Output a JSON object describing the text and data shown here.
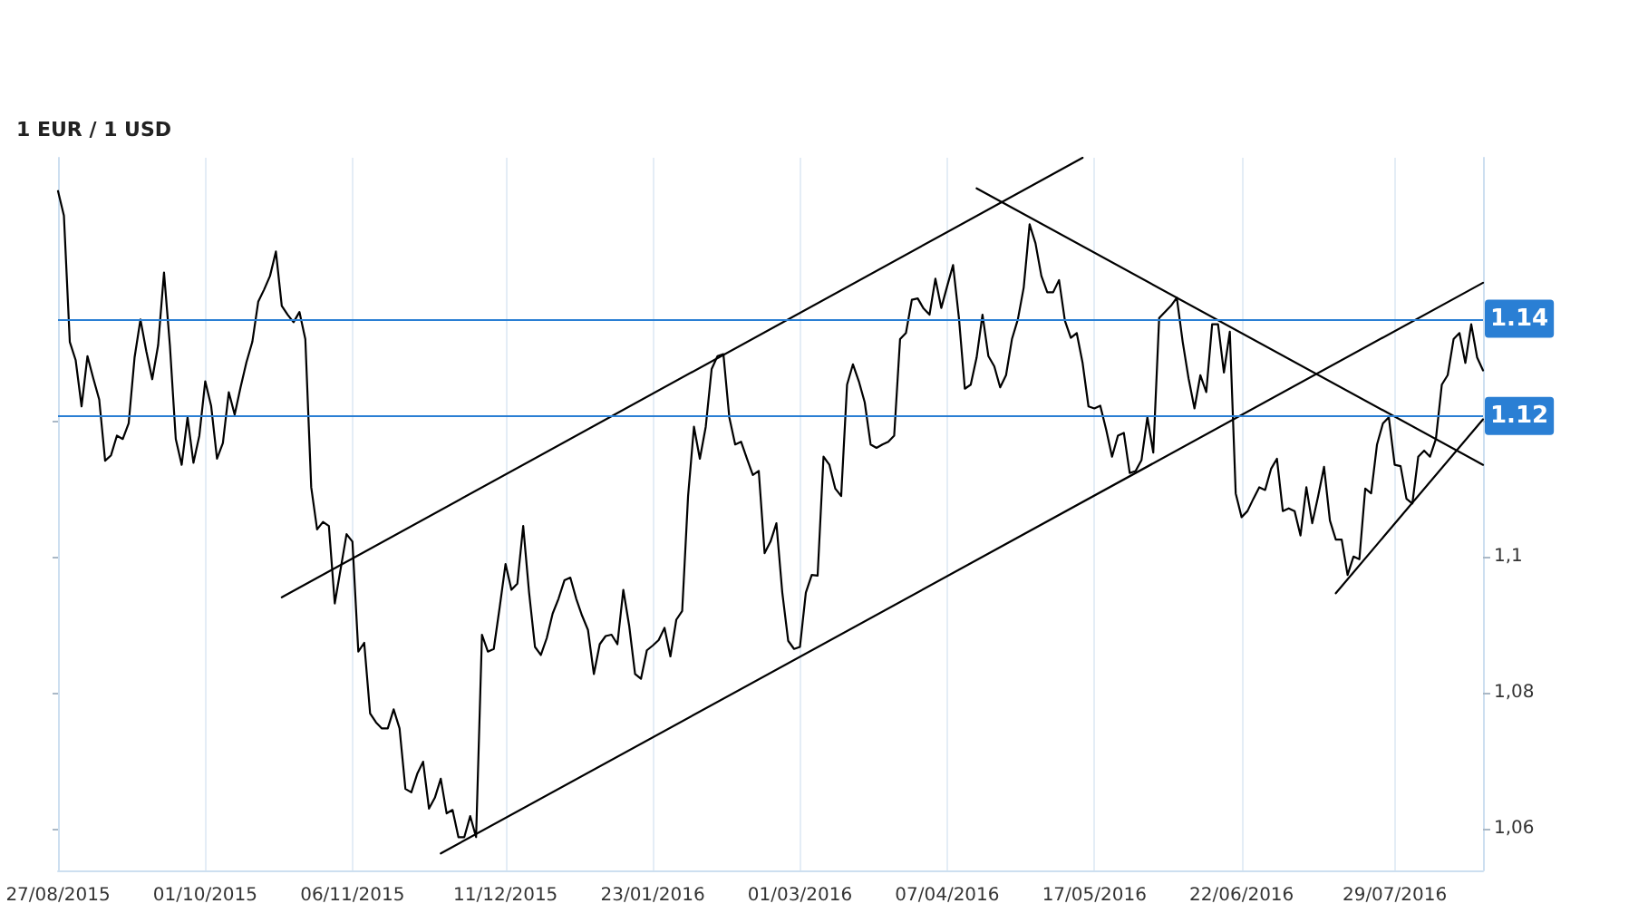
{
  "chart_data": {
    "type": "line",
    "title": "1 EUR / 1 USD",
    "marker": "none",
    "grid": "x",
    "categories": [
      "27/08/2015",
      null,
      null,
      null,
      null,
      null,
      null,
      null,
      null,
      null,
      null,
      null,
      null,
      null,
      null,
      null,
      null,
      null,
      null,
      null,
      null,
      null,
      null,
      null,
      null,
      "01/10/2015",
      null,
      null,
      null,
      null,
      null,
      null,
      null,
      null,
      null,
      null,
      null,
      null,
      null,
      null,
      null,
      null,
      null,
      null,
      null,
      null,
      null,
      null,
      null,
      null,
      "06/11/2015",
      null,
      null,
      null,
      null,
      null,
      null,
      null,
      null,
      null,
      null,
      null,
      null,
      null,
      null,
      null,
      null,
      null,
      null,
      null,
      null,
      null,
      null,
      null,
      null,
      null,
      "11/12/2015",
      null,
      null,
      null,
      null,
      null,
      null,
      null,
      null,
      null,
      null,
      null,
      null,
      null,
      null,
      null,
      null,
      null,
      null,
      null,
      null,
      null,
      null,
      null,
      null,
      "23/01/2016",
      null,
      null,
      null,
      null,
      null,
      null,
      null,
      null,
      null,
      null,
      null,
      null,
      null,
      null,
      null,
      null,
      null,
      null,
      null,
      null,
      null,
      null,
      null,
      null,
      "01/03/2016",
      null,
      null,
      null,
      null,
      null,
      null,
      null,
      null,
      null,
      null,
      null,
      null,
      null,
      null,
      null,
      null,
      null,
      null,
      null,
      null,
      null,
      null,
      null,
      null,
      "07/04/2016",
      null,
      null,
      null,
      null,
      null,
      null,
      null,
      null,
      null,
      null,
      null,
      null,
      null,
      null,
      null,
      null,
      null,
      null,
      null,
      null,
      null,
      null,
      null,
      null,
      "17/05/2016",
      null,
      null,
      null,
      null,
      null,
      null,
      null,
      null,
      null,
      null,
      null,
      null,
      null,
      null,
      null,
      null,
      null,
      null,
      null,
      null,
      null,
      null,
      null,
      null,
      "22/06/2016",
      null,
      null,
      null,
      null,
      null,
      null,
      null,
      null,
      null,
      null,
      null,
      null,
      null,
      null,
      null,
      null,
      null,
      null,
      null,
      null,
      null,
      null,
      null,
      null,
      null,
      "29/07/2016",
      null,
      null,
      null,
      null,
      null,
      null,
      null,
      null,
      null,
      null,
      null,
      null,
      null,
      null,
      null
    ],
    "ylim": [
      1.0538,
      1.1587
    ],
    "yticks": [
      {
        "value": 1.06,
        "label": "1,06"
      },
      {
        "value": 1.08,
        "label": "1,08"
      },
      {
        "value": 1.1,
        "label": "1,1"
      },
      {
        "value": 1.12,
        "label": null
      }
    ],
    "ref_lines": [
      {
        "axis": "y",
        "value": 1.135,
        "label": "1.14",
        "color": "#2a7fd4"
      },
      {
        "axis": "y",
        "value": 1.1207,
        "label": "1.12",
        "color": "#2a7fd4"
      }
    ],
    "series": [
      {
        "color": "#000000",
        "values": [
          1.1538,
          1.1502,
          1.1316,
          1.1289,
          1.1221,
          1.1295,
          1.1262,
          1.1231,
          1.1141,
          1.1149,
          1.1178,
          1.1173,
          1.1196,
          1.1293,
          1.1349,
          1.1302,
          1.1261,
          1.1311,
          1.1418,
          1.1311,
          1.1173,
          1.1135,
          1.1205,
          1.1138,
          1.1178,
          1.1258,
          1.1222,
          1.1144,
          1.1167,
          1.1242,
          1.1209,
          1.1249,
          1.1286,
          1.1316,
          1.1375,
          1.1393,
          1.1413,
          1.1449,
          1.1369,
          1.1356,
          1.1345,
          1.136,
          1.132,
          1.1102,
          1.104,
          1.1051,
          1.1045,
          1.0931,
          1.0982,
          1.1033,
          1.1022,
          1.086,
          1.0873,
          1.0769,
          1.0756,
          1.0747,
          1.0747,
          1.0775,
          1.0747,
          1.0658,
          1.0653,
          1.068,
          1.0698,
          1.0629,
          1.0645,
          1.0673,
          1.0622,
          1.0627,
          1.0587,
          1.0587,
          1.0618,
          1.0587,
          1.0885,
          1.086,
          1.0864,
          1.0925,
          1.0989,
          1.0951,
          1.096,
          1.1045,
          1.0947,
          1.0867,
          1.0855,
          1.088,
          1.0916,
          1.0938,
          1.0965,
          1.0969,
          1.0938,
          1.0913,
          1.0892,
          1.0827,
          1.0871,
          1.0883,
          1.0885,
          1.0871,
          1.0951,
          1.0898,
          1.0827,
          1.082,
          1.0862,
          1.0869,
          1.0877,
          1.0895,
          1.0853,
          1.0907,
          1.092,
          1.1089,
          1.1191,
          1.1144,
          1.1191,
          1.1276,
          1.1295,
          1.1298,
          1.1205,
          1.1165,
          1.1169,
          1.1144,
          1.112,
          1.1126,
          1.1005,
          1.1022,
          1.1049,
          1.0947,
          1.0876,
          1.0864,
          1.0867,
          1.0947,
          1.0973,
          1.0972,
          1.1147,
          1.1135,
          1.11,
          1.1089,
          1.1253,
          1.1283,
          1.1258,
          1.1227,
          1.1165,
          1.116,
          1.1165,
          1.1169,
          1.1178,
          1.132,
          1.1329,
          1.1378,
          1.138,
          1.1365,
          1.1356,
          1.1409,
          1.1366,
          1.1398,
          1.1429,
          1.1351,
          1.1247,
          1.1253,
          1.1293,
          1.1356,
          1.1295,
          1.128,
          1.1249,
          1.1267,
          1.132,
          1.1349,
          1.1396,
          1.1489,
          1.1461,
          1.1413,
          1.1389,
          1.1389,
          1.1407,
          1.1347,
          1.1322,
          1.1329,
          1.1285,
          1.1221,
          1.1218,
          1.1222,
          1.1187,
          1.1147,
          1.1178,
          1.1182,
          1.1123,
          1.1126,
          1.1142,
          1.1205,
          1.1153,
          1.1351,
          1.136,
          1.1369,
          1.1381,
          1.1316,
          1.1262,
          1.1218,
          1.1267,
          1.1242,
          1.1342,
          1.1342,
          1.1271,
          1.1331,
          1.1093,
          1.1058,
          1.1067,
          1.1085,
          1.1102,
          1.1098,
          1.1129,
          1.1144,
          1.1067,
          1.1071,
          1.1067,
          1.1031,
          1.1102,
          1.1049,
          1.1089,
          1.1132,
          1.1053,
          1.1025,
          1.1025,
          1.0973,
          1.1,
          1.0996,
          1.11,
          1.1093,
          1.1165,
          1.1196,
          1.1205,
          1.1135,
          1.1133,
          1.1085,
          1.1078,
          1.1147,
          1.1156,
          1.1147,
          1.1173,
          1.1253,
          1.1267,
          1.132,
          1.1329,
          1.1285,
          1.1342,
          1.1293,
          1.1274
        ]
      },
      {
        "type": "line",
        "color": "#000000",
        "values": [
          null,
          null,
          null,
          null,
          null,
          null,
          null,
          null,
          null,
          null,
          null,
          null,
          null,
          null,
          null,
          null,
          null,
          null,
          null,
          null,
          null,
          null,
          null,
          null,
          null,
          null,
          null,
          null,
          null,
          null,
          null,
          null,
          null,
          null,
          null,
          null,
          null,
          null,
          1.094,
          null,
          null,
          null,
          null,
          null,
          null,
          null,
          null,
          null,
          null,
          null,
          null,
          null,
          null,
          null,
          null,
          null,
          null,
          null,
          null,
          null,
          null,
          null,
          null,
          null,
          null,
          null,
          null,
          null,
          null,
          null,
          null,
          null,
          null,
          null,
          null,
          null,
          null,
          null,
          null,
          null,
          null,
          null,
          null,
          null,
          null,
          null,
          null,
          null,
          null,
          null,
          null,
          null,
          null,
          null,
          null,
          null,
          null,
          null,
          null,
          null,
          null,
          null,
          null,
          null,
          null,
          null,
          null,
          null,
          null,
          null,
          null,
          null,
          null,
          null,
          null,
          null,
          null,
          null,
          null,
          null,
          null,
          null,
          null,
          null,
          null,
          null,
          null,
          null,
          null,
          null,
          null,
          null,
          null,
          null,
          null,
          null,
          null,
          null,
          null,
          null,
          null,
          null,
          null,
          null,
          null,
          null,
          null,
          null,
          null,
          null,
          null,
          null,
          null,
          null,
          null,
          null,
          null,
          null,
          null,
          null,
          null,
          null,
          null,
          null,
          null,
          null,
          null,
          null,
          null,
          null,
          null,
          null,
          null,
          null,
          1.1587,
          null,
          null,
          null,
          null,
          null,
          null,
          null,
          null,
          null,
          null,
          null,
          null,
          null,
          null,
          null,
          null,
          null,
          null,
          null,
          null,
          null,
          null,
          null,
          null,
          null,
          null,
          null,
          null,
          null,
          null,
          null,
          null,
          null,
          null,
          null,
          null,
          null,
          null,
          null,
          null,
          null,
          null,
          null,
          null,
          null,
          null,
          null,
          null,
          null,
          null,
          null,
          null,
          null,
          null,
          null,
          null,
          null,
          null,
          null,
          null,
          null,
          null,
          null,
          null,
          null,
          null,
          null,
          null
        ]
      },
      {
        "type": "line",
        "color": "#000000",
        "values": [
          null,
          null,
          null,
          null,
          null,
          null,
          null,
          null,
          null,
          null,
          null,
          null,
          null,
          null,
          null,
          null,
          null,
          null,
          null,
          null,
          null,
          null,
          null,
          null,
          null,
          null,
          null,
          null,
          null,
          null,
          null,
          null,
          null,
          null,
          null,
          null,
          null,
          null,
          null,
          null,
          null,
          null,
          null,
          null,
          null,
          null,
          null,
          null,
          null,
          null,
          null,
          null,
          null,
          null,
          null,
          null,
          null,
          null,
          null,
          null,
          null,
          null,
          null,
          null,
          null,
          1.0563,
          null,
          null,
          null,
          null,
          null,
          null,
          null,
          null,
          null,
          null,
          null,
          null,
          null,
          null,
          null,
          null,
          null,
          null,
          null,
          null,
          null,
          null,
          null,
          null,
          null,
          null,
          null,
          null,
          null,
          null,
          null,
          null,
          null,
          null,
          null,
          null,
          null,
          null,
          null,
          null,
          null,
          null,
          null,
          null,
          null,
          null,
          null,
          null,
          null,
          null,
          null,
          null,
          null,
          null,
          null,
          null,
          null,
          null,
          null,
          null,
          null,
          null,
          null,
          null,
          null,
          null,
          null,
          null,
          null,
          null,
          null,
          null,
          null,
          null,
          null,
          null,
          null,
          null,
          null,
          null,
          null,
          null,
          null,
          null,
          null,
          null,
          null,
          null,
          null,
          null,
          null,
          null,
          null,
          null,
          null,
          null,
          null,
          null,
          null,
          null,
          null,
          null,
          null,
          null,
          null,
          null,
          null,
          null,
          null,
          null,
          null,
          null,
          null,
          null,
          null,
          null,
          null,
          null,
          null,
          null,
          null,
          null,
          null,
          null,
          null,
          null,
          null,
          null,
          null,
          null,
          null,
          null,
          null,
          null,
          null,
          null,
          null,
          null,
          null,
          null,
          null,
          null,
          null,
          null,
          null,
          null,
          null,
          null,
          null,
          null,
          null,
          null,
          null,
          null,
          null,
          null,
          null,
          null,
          null,
          null,
          null,
          null,
          null,
          null,
          null,
          null,
          null,
          null,
          null,
          null,
          null,
          null,
          null,
          null,
          null,
          null,
          1.1403
        ]
      },
      {
        "type": "line",
        "color": "#000000",
        "values": [
          null,
          null,
          null,
          null,
          null,
          null,
          null,
          null,
          null,
          null,
          null,
          null,
          null,
          null,
          null,
          null,
          null,
          null,
          null,
          null,
          null,
          null,
          null,
          null,
          null,
          null,
          null,
          null,
          null,
          null,
          null,
          null,
          null,
          null,
          null,
          null,
          null,
          null,
          null,
          null,
          null,
          null,
          null,
          null,
          null,
          null,
          null,
          null,
          null,
          null,
          null,
          null,
          null,
          null,
          null,
          null,
          null,
          null,
          null,
          null,
          null,
          null,
          null,
          null,
          null,
          null,
          null,
          null,
          null,
          null,
          null,
          null,
          null,
          null,
          null,
          null,
          null,
          null,
          null,
          null,
          null,
          null,
          null,
          null,
          null,
          null,
          null,
          null,
          null,
          null,
          null,
          null,
          null,
          null,
          null,
          null,
          null,
          null,
          null,
          null,
          null,
          null,
          null,
          null,
          null,
          null,
          null,
          null,
          null,
          null,
          null,
          null,
          null,
          null,
          null,
          null,
          null,
          null,
          null,
          null,
          null,
          null,
          null,
          null,
          null,
          null,
          null,
          null,
          null,
          null,
          null,
          null,
          null,
          null,
          null,
          null,
          null,
          null,
          null,
          null,
          null,
          null,
          null,
          null,
          null,
          null,
          null,
          null,
          null,
          null,
          null,
          null,
          null,
          null,
          null,
          null,
          1.1542,
          null,
          null,
          null,
          null,
          null,
          null,
          null,
          null,
          null,
          null,
          null,
          null,
          null,
          null,
          null,
          null,
          null,
          null,
          null,
          null,
          null,
          null,
          null,
          null,
          null,
          null,
          null,
          null,
          null,
          null,
          null,
          null,
          null,
          null,
          null,
          null,
          null,
          null,
          null,
          null,
          null,
          null,
          null,
          null,
          null,
          null,
          null,
          null,
          null,
          null,
          null,
          null,
          null,
          null,
          null,
          null,
          null,
          null,
          null,
          null,
          null,
          null,
          null,
          null,
          null,
          null,
          null,
          null,
          null,
          null,
          null,
          null,
          null,
          null,
          null,
          null,
          null,
          null,
          null,
          null,
          null,
          null,
          null,
          null,
          null,
          1.1135
        ]
      },
      {
        "type": "line",
        "color": "#000000",
        "values": [
          null,
          null,
          null,
          null,
          null,
          null,
          null,
          null,
          null,
          null,
          null,
          null,
          null,
          null,
          null,
          null,
          null,
          null,
          null,
          null,
          null,
          null,
          null,
          null,
          null,
          null,
          null,
          null,
          null,
          null,
          null,
          null,
          null,
          null,
          null,
          null,
          null,
          null,
          null,
          null,
          null,
          null,
          null,
          null,
          null,
          null,
          null,
          null,
          null,
          null,
          null,
          null,
          null,
          null,
          null,
          null,
          null,
          null,
          null,
          null,
          null,
          null,
          null,
          null,
          null,
          null,
          null,
          null,
          null,
          null,
          null,
          null,
          null,
          null,
          null,
          null,
          null,
          null,
          null,
          null,
          null,
          null,
          null,
          null,
          null,
          null,
          null,
          null,
          null,
          null,
          null,
          null,
          null,
          null,
          null,
          null,
          null,
          null,
          null,
          null,
          null,
          null,
          null,
          null,
          null,
          null,
          null,
          null,
          null,
          null,
          null,
          null,
          null,
          null,
          null,
          null,
          null,
          null,
          null,
          null,
          null,
          null,
          null,
          null,
          null,
          null,
          null,
          null,
          null,
          null,
          null,
          null,
          null,
          null,
          null,
          null,
          null,
          null,
          null,
          null,
          null,
          null,
          null,
          null,
          null,
          null,
          null,
          null,
          null,
          null,
          null,
          null,
          null,
          null,
          null,
          null,
          null,
          null,
          null,
          null,
          null,
          null,
          null,
          null,
          null,
          null,
          null,
          null,
          null,
          null,
          null,
          null,
          null,
          null,
          null,
          null,
          null,
          null,
          null,
          null,
          null,
          null,
          null,
          null,
          null,
          null,
          null,
          null,
          null,
          null,
          null,
          null,
          null,
          null,
          null,
          null,
          null,
          null,
          null,
          null,
          null,
          null,
          null,
          null,
          null,
          null,
          null,
          null,
          null,
          null,
          null,
          null,
          null,
          null,
          null,
          null,
          null,
          1.0946,
          null,
          null,
          null,
          null,
          null,
          null,
          null,
          null,
          null,
          null,
          null,
          null,
          null,
          null,
          null,
          null,
          null,
          null,
          null,
          null,
          null,
          null,
          null,
          null,
          1.1202
        ]
      }
    ]
  }
}
